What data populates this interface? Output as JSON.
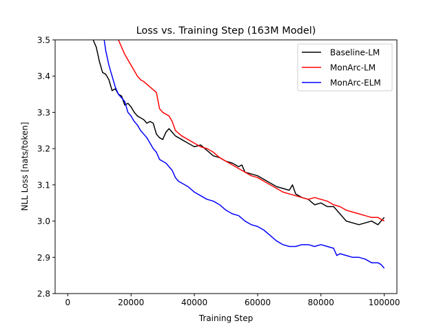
{
  "chart_data": {
    "type": "line",
    "title": "Loss vs. Training Step (163M Model)",
    "xlabel": "Training Step",
    "ylabel": "NLL Loss [nats/token]",
    "xlim": [
      -4000,
      104000
    ],
    "ylim": [
      2.8,
      3.5
    ],
    "xticks": [
      0,
      20000,
      40000,
      60000,
      80000,
      100000
    ],
    "xtick_labels": [
      "0",
      "20000",
      "40000",
      "60000",
      "80000",
      "100000"
    ],
    "yticks": [
      2.8,
      2.9,
      3.0,
      3.1,
      3.2,
      3.3,
      3.4,
      3.5
    ],
    "ytick_labels": [
      "2.8",
      "2.9",
      "3.0",
      "3.1",
      "3.2",
      "3.3",
      "3.4",
      "3.5"
    ],
    "grid": false,
    "legend_position": "top-right",
    "series": [
      {
        "name": "Baseline-LM",
        "color": "#000000",
        "x": [
          8000,
          9000,
          10000,
          11000,
          12000,
          13000,
          14000,
          15000,
          16000,
          17000,
          18000,
          19000,
          20000,
          21000,
          22000,
          23000,
          24000,
          25000,
          26000,
          27000,
          28000,
          29000,
          30000,
          31000,
          32000,
          33000,
          34000,
          35000,
          36000,
          38000,
          40000,
          42000,
          44000,
          46000,
          48000,
          50000,
          52000,
          54000,
          55000,
          56000,
          58000,
          60000,
          62000,
          64000,
          66000,
          68000,
          70000,
          71000,
          72000,
          74000,
          76000,
          78000,
          80000,
          82000,
          84000,
          86000,
          88000,
          90000,
          92000,
          94000,
          96000,
          97000,
          98000,
          99000,
          100000
        ],
        "values": [
          3.5,
          3.48,
          3.44,
          3.41,
          3.405,
          3.39,
          3.36,
          3.365,
          3.35,
          3.345,
          3.32,
          3.325,
          3.315,
          3.3,
          3.29,
          3.285,
          3.28,
          3.27,
          3.275,
          3.27,
          3.24,
          3.23,
          3.225,
          3.245,
          3.255,
          3.245,
          3.235,
          3.23,
          3.225,
          3.215,
          3.205,
          3.21,
          3.195,
          3.18,
          3.175,
          3.165,
          3.16,
          3.15,
          3.155,
          3.135,
          3.13,
          3.125,
          3.115,
          3.105,
          3.095,
          3.09,
          3.085,
          3.1,
          3.075,
          3.065,
          3.06,
          3.045,
          3.05,
          3.04,
          3.04,
          3.02,
          3.0,
          2.995,
          2.99,
          2.995,
          3.0,
          2.995,
          2.99,
          3.0,
          3.01
        ]
      },
      {
        "name": "MonArc-LM",
        "color": "#ff0000",
        "x": [
          16000,
          18000,
          20000,
          22000,
          23000,
          24000,
          26000,
          28000,
          29000,
          30000,
          31000,
          32000,
          33000,
          34000,
          36000,
          38000,
          40000,
          42000,
          44000,
          46000,
          48000,
          50000,
          52000,
          54000,
          56000,
          58000,
          60000,
          62000,
          64000,
          66000,
          68000,
          70000,
          72000,
          74000,
          76000,
          78000,
          80000,
          82000,
          84000,
          86000,
          88000,
          90000,
          92000,
          94000,
          96000,
          98000,
          100000
        ],
        "values": [
          3.5,
          3.46,
          3.43,
          3.4,
          3.39,
          3.385,
          3.37,
          3.355,
          3.31,
          3.3,
          3.295,
          3.29,
          3.275,
          3.25,
          3.235,
          3.225,
          3.215,
          3.205,
          3.2,
          3.19,
          3.175,
          3.165,
          3.155,
          3.145,
          3.135,
          3.125,
          3.12,
          3.11,
          3.1,
          3.09,
          3.08,
          3.075,
          3.07,
          3.065,
          3.06,
          3.065,
          3.06,
          3.055,
          3.045,
          3.04,
          3.03,
          3.025,
          3.02,
          3.015,
          3.01,
          3.01,
          3.0
        ]
      },
      {
        "name": "MonArc-ELM",
        "color": "#0000ff",
        "x": [
          11500,
          12000,
          13000,
          14000,
          15000,
          16000,
          17000,
          18000,
          19000,
          20000,
          21000,
          22000,
          23000,
          24000,
          25000,
          26000,
          27000,
          28000,
          29000,
          30000,
          31000,
          32000,
          33000,
          34000,
          35000,
          36000,
          38000,
          40000,
          42000,
          44000,
          46000,
          48000,
          50000,
          52000,
          54000,
          56000,
          58000,
          60000,
          62000,
          64000,
          66000,
          68000,
          70000,
          72000,
          74000,
          76000,
          78000,
          80000,
          82000,
          84000,
          85000,
          86000,
          88000,
          90000,
          92000,
          94000,
          96000,
          98000,
          99000,
          100000
        ],
        "values": [
          3.5,
          3.47,
          3.43,
          3.4,
          3.37,
          3.35,
          3.34,
          3.33,
          3.3,
          3.29,
          3.275,
          3.265,
          3.25,
          3.24,
          3.23,
          3.215,
          3.2,
          3.19,
          3.17,
          3.165,
          3.16,
          3.15,
          3.14,
          3.12,
          3.11,
          3.105,
          3.095,
          3.08,
          3.07,
          3.06,
          3.055,
          3.045,
          3.03,
          3.02,
          3.015,
          3.0,
          2.99,
          2.985,
          2.975,
          2.96,
          2.945,
          2.935,
          2.93,
          2.93,
          2.935,
          2.935,
          2.93,
          2.935,
          2.93,
          2.925,
          2.905,
          2.91,
          2.905,
          2.9,
          2.9,
          2.895,
          2.885,
          2.885,
          2.88,
          2.87
        ]
      }
    ]
  }
}
